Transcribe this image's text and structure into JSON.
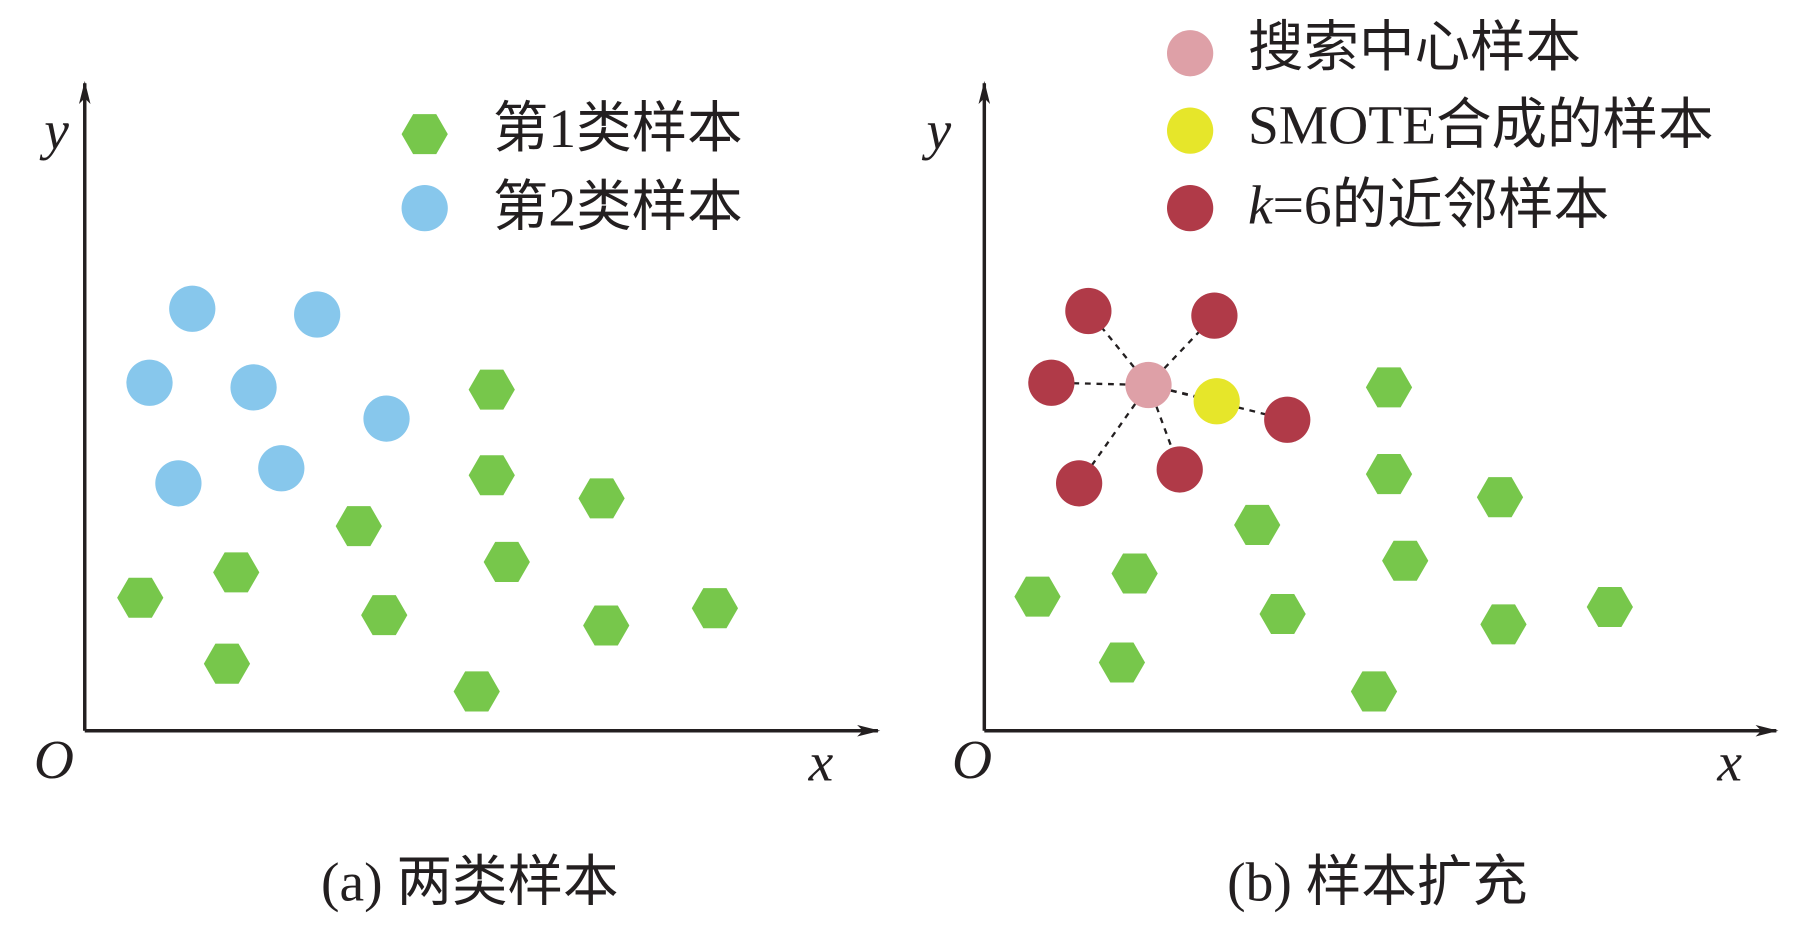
{
  "panels": [
    {
      "axis_y": "y",
      "axis_x": "x",
      "origin": "O",
      "legend": [
        {
          "label": "第1类样本"
        },
        {
          "label": "第2类样本"
        }
      ],
      "caption": "(a) 两类样本"
    },
    {
      "axis_y": "y",
      "axis_x": "x",
      "origin": "O",
      "legend": [
        {
          "label": "搜索中心样本"
        },
        {
          "label": "SMOTE合成的样本"
        },
        {
          "label_var": "k",
          "label": "=6的近邻样本"
        }
      ],
      "caption": "(b) 样本扩充"
    }
  ]
}
